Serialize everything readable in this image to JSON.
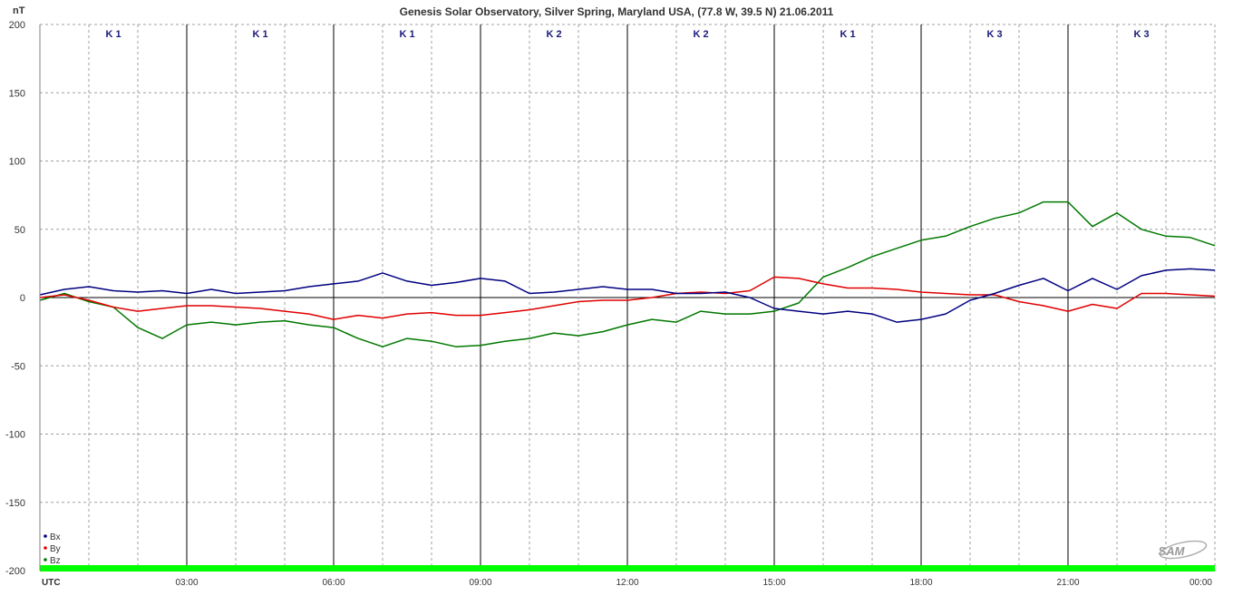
{
  "chart_data": {
    "type": "line",
    "title": "Genesis Solar Observatory, Silver Spring, Maryland USA, (77.8 W, 39.5 N)  21.06.2011",
    "ylabel": "nT",
    "xlabel": "UTC",
    "ylim": [
      -200,
      200
    ],
    "xlim": [
      0,
      24
    ],
    "yticks": [
      "200",
      "150",
      "100",
      "50",
      "0",
      "-50",
      "-100",
      "-150",
      "-200"
    ],
    "xticks": [
      "03:00",
      "06:00",
      "09:00",
      "12:00",
      "15:00",
      "18:00",
      "21:00",
      "00:00"
    ],
    "k_index": [
      "K 1",
      "K 1",
      "K 1",
      "K 2",
      "K 2",
      "K 1",
      "K 3",
      "K 3"
    ],
    "grid": true,
    "legend_position": "bottom-left",
    "logo_text": "SAM",
    "colors": {
      "Bx": "#000080",
      "By": "#e00000",
      "Bz": "#007800",
      "bar": "#00ff00",
      "grid": "#a0a0a0"
    },
    "series": [
      {
        "name": "Bx",
        "x": [
          0,
          0.5,
          1,
          1.5,
          2,
          2.5,
          3,
          3.5,
          4,
          4.5,
          5,
          5.5,
          6,
          6.5,
          7,
          7.5,
          8,
          8.5,
          9,
          9.5,
          10,
          10.5,
          11,
          11.5,
          12,
          12.5,
          13,
          13.5,
          14,
          14.5,
          15,
          15.5,
          16,
          16.5,
          17,
          17.5,
          18,
          18.5,
          19,
          19.5,
          20,
          20.5,
          21,
          21.5,
          22,
          22.5,
          23,
          23.5,
          24
        ],
        "y": [
          2,
          6,
          8,
          5,
          4,
          5,
          3,
          6,
          3,
          4,
          5,
          8,
          10,
          12,
          18,
          12,
          9,
          11,
          14,
          12,
          3,
          4,
          6,
          8,
          6,
          6,
          3,
          3,
          4,
          0,
          -8,
          -10,
          -12,
          -10,
          -12,
          -18,
          -16,
          -12,
          -2,
          3,
          9,
          14,
          5,
          14,
          6,
          16,
          20,
          21,
          20
        ]
      },
      {
        "name": "By",
        "x": [
          0,
          0.5,
          1,
          1.5,
          2,
          2.5,
          3,
          3.5,
          4,
          4.5,
          5,
          5.5,
          6,
          6.5,
          7,
          7.5,
          8,
          8.5,
          9,
          9.5,
          10,
          10.5,
          11,
          11.5,
          12,
          12.5,
          13,
          13.5,
          14,
          14.5,
          15,
          15.5,
          16,
          16.5,
          17,
          17.5,
          18,
          18.5,
          19,
          19.5,
          20,
          20.5,
          21,
          21.5,
          22,
          22.5,
          23,
          23.5,
          24
        ],
        "y": [
          0,
          2,
          -2,
          -7,
          -10,
          -8,
          -6,
          -6,
          -7,
          -8,
          -10,
          -12,
          -16,
          -13,
          -15,
          -12,
          -11,
          -13,
          -13,
          -11,
          -9,
          -6,
          -3,
          -2,
          -2,
          0,
          3,
          4,
          3,
          5,
          15,
          14,
          10,
          7,
          7,
          6,
          4,
          3,
          2,
          2,
          -3,
          -6,
          -10,
          -5,
          -8,
          3,
          3,
          2,
          1
        ]
      },
      {
        "name": "Bz",
        "x": [
          0,
          0.5,
          1,
          1.5,
          2,
          2.5,
          3,
          3.5,
          4,
          4.5,
          5,
          5.5,
          6,
          6.5,
          7,
          7.5,
          8,
          8.5,
          9,
          9.5,
          10,
          10.5,
          11,
          11.5,
          12,
          12.5,
          13,
          13.5,
          14,
          14.5,
          15,
          15.5,
          16,
          16.5,
          17,
          17.5,
          18,
          18.5,
          19,
          19.5,
          20,
          20.5,
          21,
          21.5,
          22,
          22.5,
          23,
          23.5,
          24
        ],
        "y": [
          -2,
          3,
          -3,
          -7,
          -22,
          -30,
          -20,
          -18,
          -20,
          -18,
          -17,
          -20,
          -22,
          -30,
          -36,
          -30,
          -32,
          -36,
          -35,
          -32,
          -30,
          -26,
          -28,
          -25,
          -20,
          -16,
          -18,
          -10,
          -12,
          -12,
          -10,
          -4,
          15,
          22,
          30,
          36,
          42,
          45,
          52,
          58,
          62,
          70,
          70,
          52,
          62,
          50,
          45,
          44,
          38
        ]
      }
    ]
  }
}
